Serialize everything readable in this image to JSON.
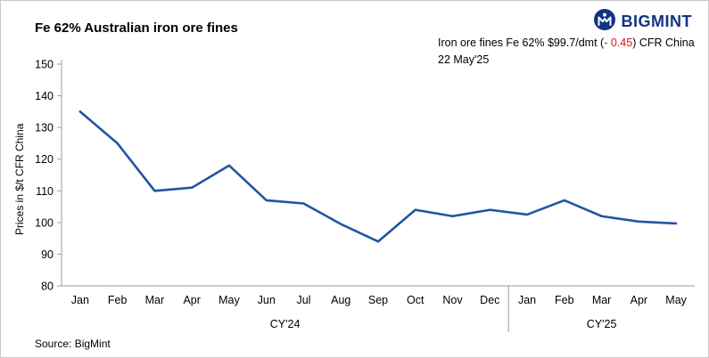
{
  "page": {
    "title": "Fe 62% Australian iron ore fines",
    "source": "Source: BigMint"
  },
  "logo": {
    "text": "BIGMINT",
    "icon": "bigmint-circle-m-icon",
    "color": "#12357f"
  },
  "annotation": {
    "prefix": "Iron ore fines Fe 62% $99.7/dmt (",
    "change": "- 0.45",
    "suffix": ") CFR China 22 May'25",
    "change_color": "#e01313"
  },
  "chart_data": {
    "type": "line",
    "title": "Fe 62% Australian iron ore fines",
    "ylabel": "Prices in $/t CFR China",
    "ylim": [
      80,
      150
    ],
    "ytick_step": 10,
    "grid": false,
    "legend": "none",
    "line_color": "#2155a3",
    "categories": [
      "Jan",
      "Feb",
      "Mar",
      "Apr",
      "May",
      "Jun",
      "Jul",
      "Aug",
      "Sep",
      "Oct",
      "Nov",
      "Dec",
      "Jan",
      "Feb",
      "Mar",
      "Apr",
      "May"
    ],
    "groups": [
      {
        "label": "CY'24",
        "count": 12
      },
      {
        "label": "CY'25",
        "count": 5
      }
    ],
    "values": [
      135,
      125,
      110,
      111,
      118,
      107,
      106,
      99.5,
      94,
      104,
      102,
      104,
      102.5,
      107,
      102,
      100.3,
      99.7
    ],
    "latest_point": {
      "month": "May",
      "year": "CY'25",
      "value": 99.7,
      "change": -0.45
    }
  }
}
